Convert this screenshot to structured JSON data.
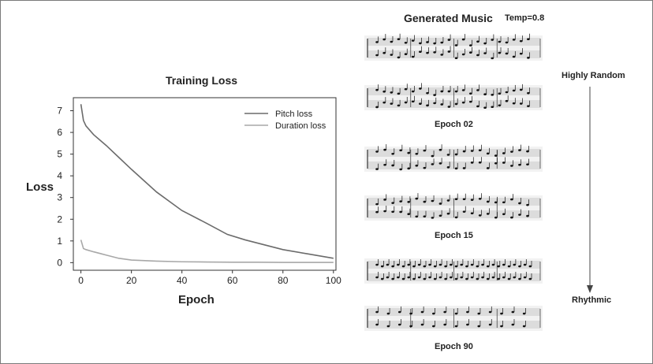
{
  "chart_data": {
    "type": "line",
    "title": "Training Loss",
    "xlabel": "Epoch",
    "ylabel": "Loss",
    "xlim": [
      -3,
      101
    ],
    "ylim": [
      -0.35,
      7.6
    ],
    "xticks": [
      0,
      20,
      40,
      60,
      80,
      100
    ],
    "yticks": [
      0,
      1,
      2,
      3,
      4,
      5,
      6,
      7
    ],
    "grid": false,
    "legend": "top-right",
    "series": [
      {
        "name": "Pitch loss",
        "color": "#6b6b6b",
        "x": [
          0,
          1,
          2,
          5,
          10,
          15,
          20,
          30,
          40,
          50,
          58,
          65,
          70,
          80,
          90,
          100
        ],
        "y": [
          7.3,
          6.55,
          6.3,
          5.9,
          5.4,
          4.85,
          4.3,
          3.25,
          2.4,
          1.8,
          1.3,
          1.05,
          0.9,
          0.6,
          0.4,
          0.2
        ]
      },
      {
        "name": "Duration loss",
        "color": "#a8a8a8",
        "x": [
          0,
          1,
          2,
          5,
          10,
          15,
          20,
          30,
          40,
          50,
          60,
          70,
          80,
          90,
          100
        ],
        "y": [
          1.05,
          0.65,
          0.6,
          0.5,
          0.35,
          0.2,
          0.12,
          0.07,
          0.04,
          0.03,
          0.02,
          0.02,
          0.01,
          0.01,
          0.01
        ]
      }
    ]
  },
  "music": {
    "title": "Generated Music",
    "temp": "Temp=0.8",
    "epochs": [
      "Epoch 02",
      "Epoch 15",
      "Epoch 90"
    ],
    "top_label": "Highly Random",
    "bottom_label": "Rhythmic"
  }
}
